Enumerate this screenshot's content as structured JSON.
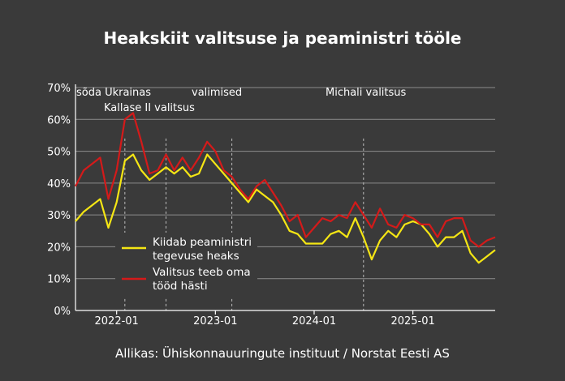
{
  "colors": {
    "background": "#3a3a3a",
    "grid": "#8c8c8c",
    "axis": "#ffffff",
    "text": "#ffffff",
    "series_pm": "#f5e614",
    "series_gov": "#d41a1a"
  },
  "chart_data": {
    "type": "line",
    "title": "Heakskiit valitsuse ja peaministri tööle",
    "source": "Allikas: Ühiskonnauuringute instituut / Norstat Eesti AS",
    "x_unit": "month",
    "xlim": [
      "2021-08",
      "2025-11"
    ],
    "ylim": [
      0,
      70
    ],
    "yticks": [
      0,
      10,
      20,
      30,
      40,
      50,
      60,
      70
    ],
    "ytick_labels": [
      "0%",
      "10%",
      "20%",
      "30%",
      "40%",
      "50%",
      "60%",
      "70%"
    ],
    "xticks": [
      "2022-01",
      "2023-01",
      "2024-01",
      "2025-01"
    ],
    "xtick_labels": [
      "2022-01",
      "2023-01",
      "2024-01",
      "2025-01"
    ],
    "grid": "horizontal",
    "legend_position": "bottom-left",
    "series": [
      {
        "name": "Kiidab peaministri tegevuse heaks",
        "color": "#f5e614",
        "points": [
          [
            "2021-08",
            28
          ],
          [
            "2021-09",
            31
          ],
          [
            "2021-10",
            33
          ],
          [
            "2021-11",
            35
          ],
          [
            "2021-12",
            26
          ],
          [
            "2022-01",
            34
          ],
          [
            "2022-02",
            47
          ],
          [
            "2022-03",
            49
          ],
          [
            "2022-04",
            44
          ],
          [
            "2022-05",
            41
          ],
          [
            "2022-06",
            43
          ],
          [
            "2022-07",
            45
          ],
          [
            "2022-08",
            43
          ],
          [
            "2022-09",
            45
          ],
          [
            "2022-10",
            42
          ],
          [
            "2022-11",
            43
          ],
          [
            "2022-12",
            49
          ],
          [
            "2023-01",
            46
          ],
          [
            "2023-02",
            43
          ],
          [
            "2023-03",
            40
          ],
          [
            "2023-04",
            37
          ],
          [
            "2023-05",
            34
          ],
          [
            "2023-06",
            38
          ],
          [
            "2023-07",
            36
          ],
          [
            "2023-08",
            34
          ],
          [
            "2023-09",
            30
          ],
          [
            "2023-10",
            25
          ],
          [
            "2023-11",
            24
          ],
          [
            "2023-12",
            21
          ],
          [
            "2024-01",
            21
          ],
          [
            "2024-02",
            21
          ],
          [
            "2024-03",
            24
          ],
          [
            "2024-04",
            25
          ],
          [
            "2024-05",
            23
          ],
          [
            "2024-06",
            29
          ],
          [
            "2024-07",
            23
          ],
          [
            "2024-08",
            16
          ],
          [
            "2024-09",
            22
          ],
          [
            "2024-10",
            25
          ],
          [
            "2024-11",
            23
          ],
          [
            "2024-12",
            27
          ],
          [
            "2025-01",
            28
          ],
          [
            "2025-02",
            27
          ],
          [
            "2025-03",
            24
          ],
          [
            "2025-04",
            20
          ],
          [
            "2025-05",
            23
          ],
          [
            "2025-06",
            23
          ],
          [
            "2025-07",
            25
          ],
          [
            "2025-08",
            18
          ],
          [
            "2025-09",
            15
          ],
          [
            "2025-10",
            17
          ],
          [
            "2025-11",
            19
          ]
        ]
      },
      {
        "name": "Valitsus teeb oma tööd hästi",
        "color": "#d41a1a",
        "points": [
          [
            "2021-08",
            39
          ],
          [
            "2021-09",
            44
          ],
          [
            "2021-10",
            46
          ],
          [
            "2021-11",
            48
          ],
          [
            "2021-12",
            35
          ],
          [
            "2022-01",
            44
          ],
          [
            "2022-02",
            60
          ],
          [
            "2022-03",
            62
          ],
          [
            "2022-04",
            53
          ],
          [
            "2022-05",
            43
          ],
          [
            "2022-06",
            44
          ],
          [
            "2022-07",
            49
          ],
          [
            "2022-08",
            44
          ],
          [
            "2022-09",
            48
          ],
          [
            "2022-10",
            44
          ],
          [
            "2022-11",
            48
          ],
          [
            "2022-12",
            53
          ],
          [
            "2023-01",
            50
          ],
          [
            "2023-02",
            44
          ],
          [
            "2023-03",
            42
          ],
          [
            "2023-04",
            38
          ],
          [
            "2023-05",
            35
          ],
          [
            "2023-06",
            39
          ],
          [
            "2023-07",
            41
          ],
          [
            "2023-08",
            37
          ],
          [
            "2023-09",
            33
          ],
          [
            "2023-10",
            28
          ],
          [
            "2023-11",
            30
          ],
          [
            "2023-12",
            23
          ],
          [
            "2024-01",
            26
          ],
          [
            "2024-02",
            29
          ],
          [
            "2024-03",
            28
          ],
          [
            "2024-04",
            30
          ],
          [
            "2024-05",
            29
          ],
          [
            "2024-06",
            34
          ],
          [
            "2024-07",
            30
          ],
          [
            "2024-08",
            26
          ],
          [
            "2024-09",
            32
          ],
          [
            "2024-10",
            27
          ],
          [
            "2024-11",
            26
          ],
          [
            "2024-12",
            30
          ],
          [
            "2025-01",
            29
          ],
          [
            "2025-02",
            27
          ],
          [
            "2025-03",
            27
          ],
          [
            "2025-04",
            23
          ],
          [
            "2025-05",
            28
          ],
          [
            "2025-06",
            29
          ],
          [
            "2025-07",
            29
          ],
          [
            "2025-08",
            22
          ],
          [
            "2025-09",
            20
          ],
          [
            "2025-10",
            22
          ],
          [
            "2025-11",
            23
          ]
        ]
      }
    ],
    "annotations": [
      {
        "label": "sõda Ukrainas",
        "x": "2022-02"
      },
      {
        "label": "Kallase II valitsus",
        "x": "2022-07"
      },
      {
        "label": "valimised",
        "x": "2023-03"
      },
      {
        "label": "Michali valitsus",
        "x": "2024-07"
      }
    ]
  }
}
